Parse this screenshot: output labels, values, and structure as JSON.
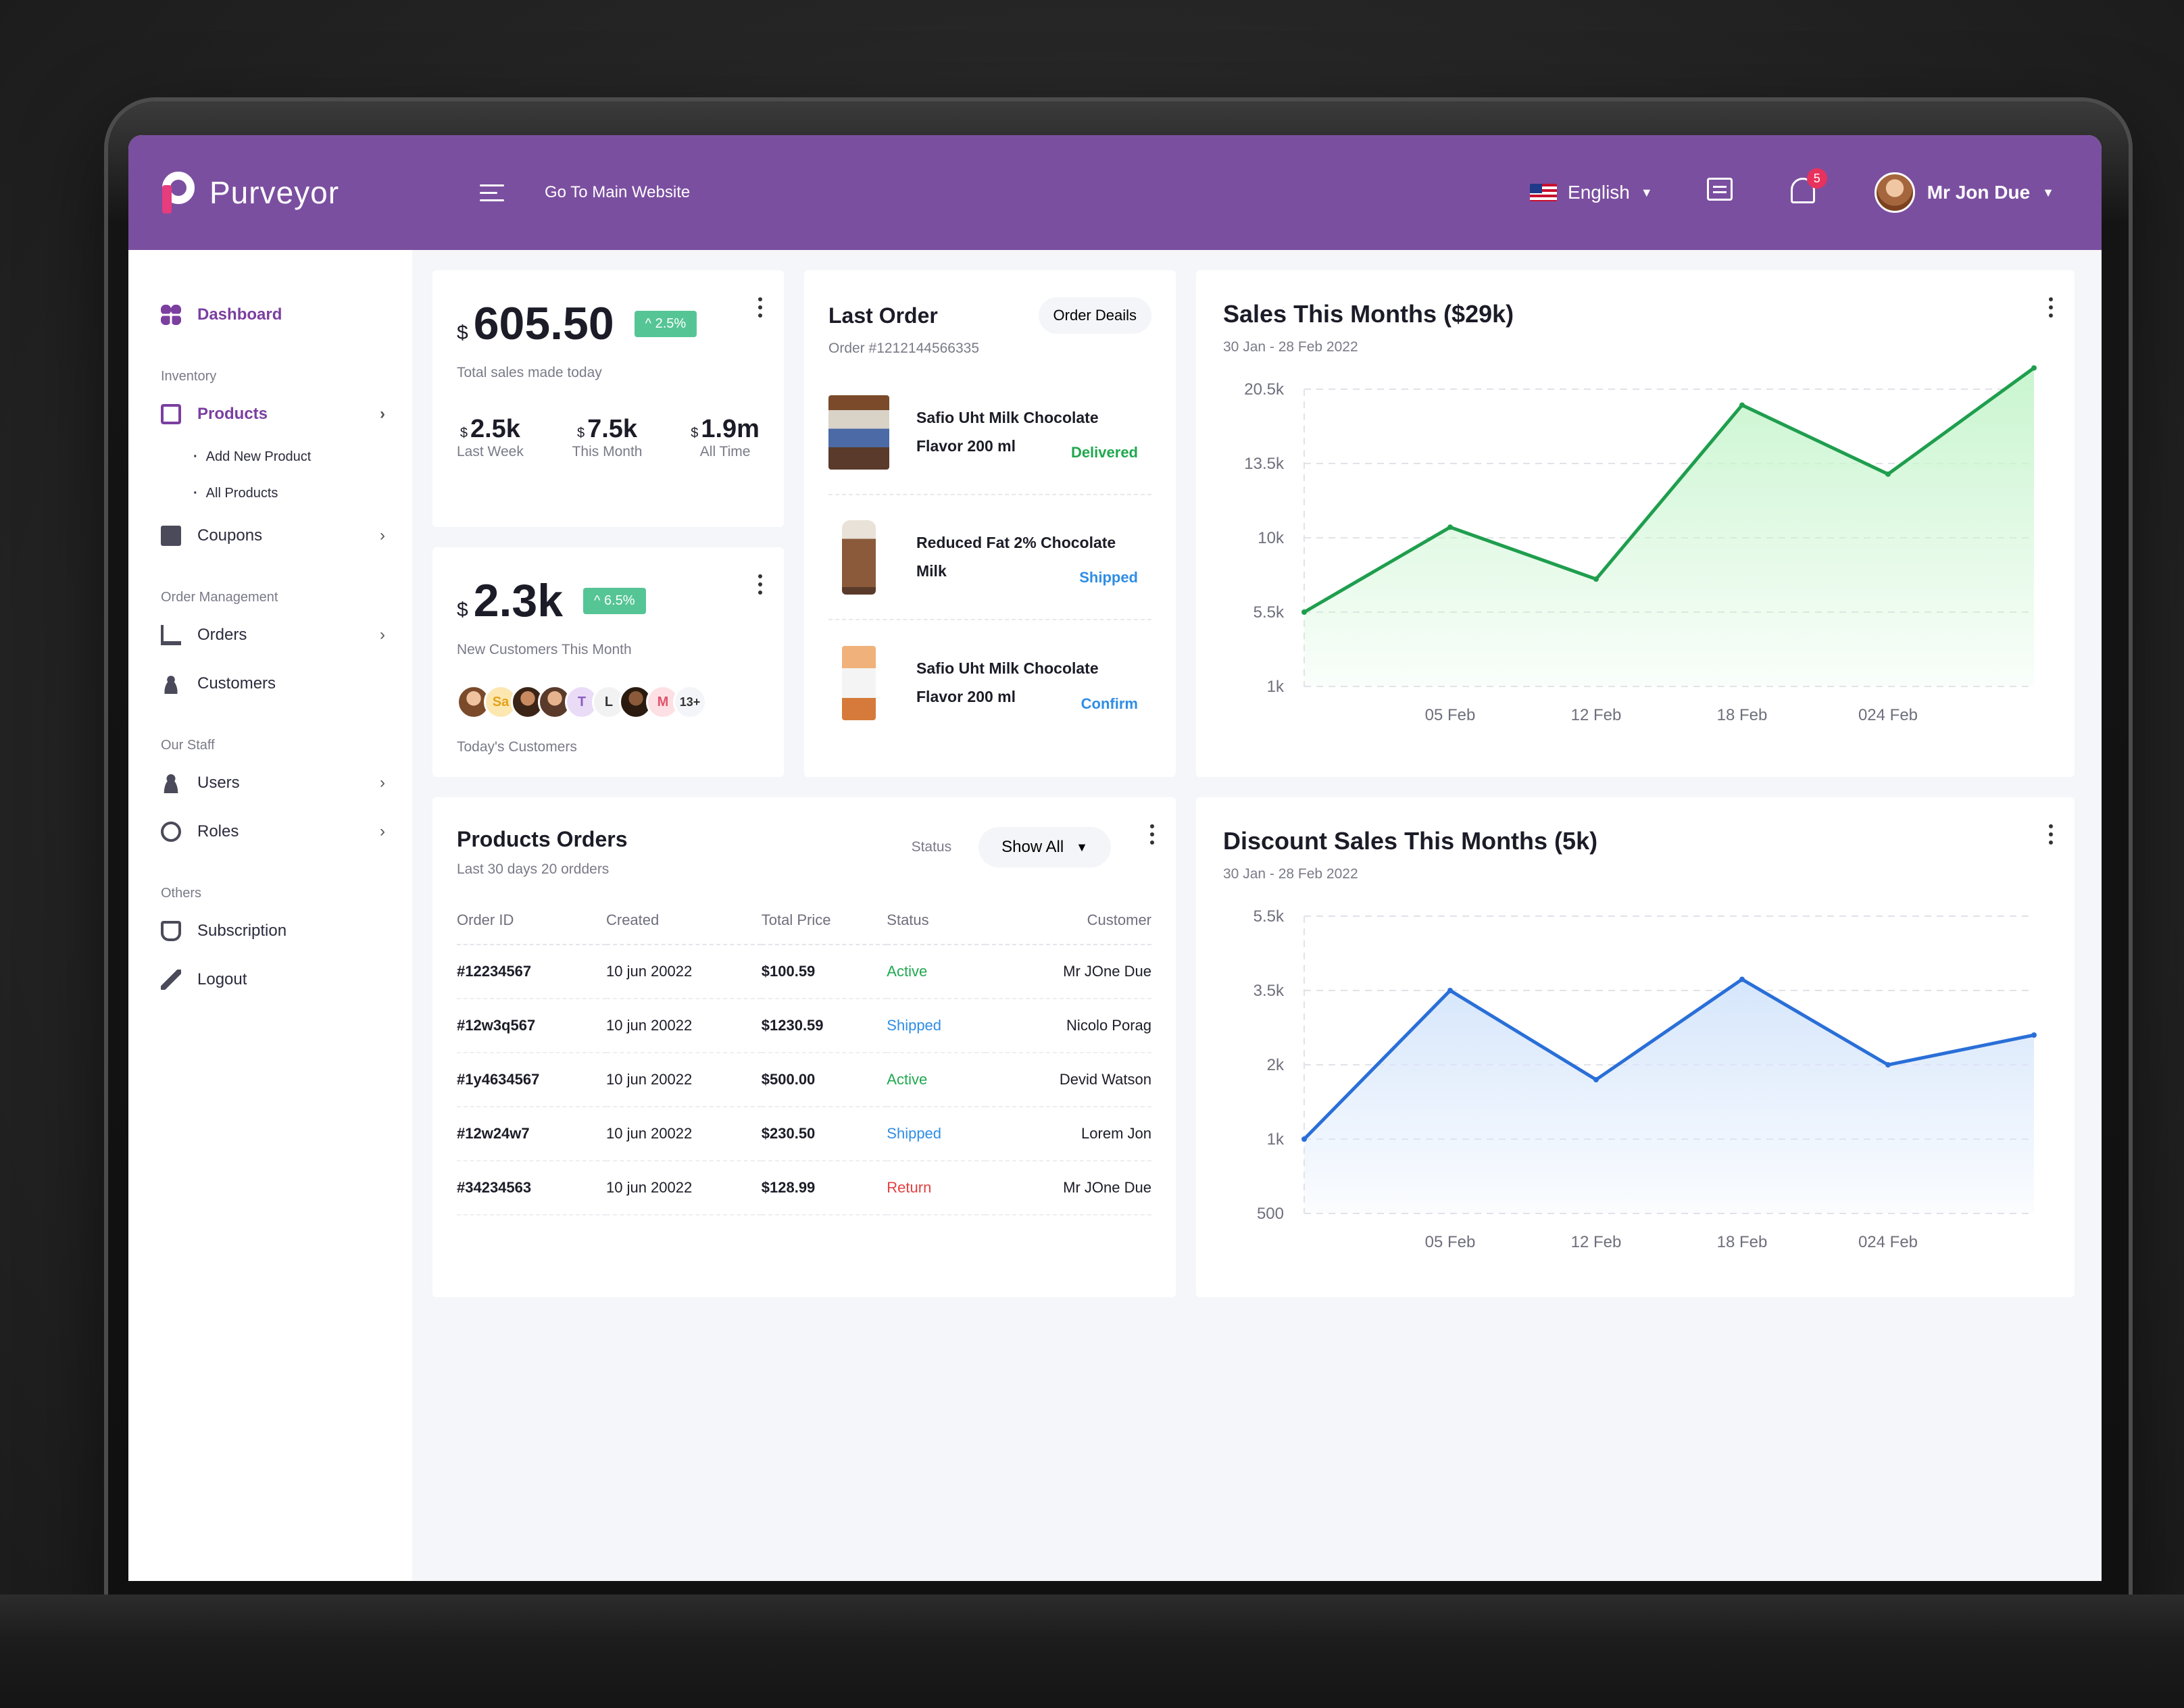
{
  "brand": {
    "name": "Purveyor"
  },
  "topbar": {
    "main_link": "Go To Main Website",
    "language": "English",
    "notification_count": "5",
    "user_name": "Mr Jon Due"
  },
  "sidebar": {
    "dashboard": "Dashboard",
    "sections": {
      "inventory": "Inventory",
      "order_management": "Order Management",
      "our_staff": "Our Staff",
      "others": "Others"
    },
    "products": "Products",
    "add_new_product": "Add New Product",
    "all_products": "All Products",
    "coupons": "Coupons",
    "orders": "Orders",
    "customers": "Customers",
    "users": "Users",
    "roles": "Roles",
    "subscription": "Subscription",
    "logout": "Logout"
  },
  "sales_card": {
    "currency": "$",
    "value": "605.50",
    "change": "^ 2.5%",
    "caption": "Total sales made today",
    "stats": [
      {
        "value": "2.5k",
        "label": "Last Week"
      },
      {
        "value": "7.5k",
        "label": "This Month"
      },
      {
        "value": "1.9m",
        "label": "All Time"
      }
    ]
  },
  "customers_card": {
    "currency": "$",
    "value": "2.3k",
    "change": "^ 6.5%",
    "caption": "New Customers This Month",
    "avatar_initials": [
      "Sa",
      "T",
      "L",
      "M"
    ],
    "more": "13+",
    "footer": "Today's Customers"
  },
  "last_order": {
    "title": "Last Order",
    "button": "Order Deails",
    "order_no": "Order #1212144566335",
    "items": [
      {
        "name": "Safio Uht Milk Chocolate Flavor 200 ml",
        "status": "Delivered"
      },
      {
        "name": "Reduced Fat 2% Chocolate Milk",
        "status": "Shipped"
      },
      {
        "name": "Safio Uht Milk Chocolate Flavor 200 ml",
        "status": "Confirm"
      }
    ]
  },
  "product_orders": {
    "title": "Products Orders",
    "subtitle": "Last 30 days 20 ordders",
    "status_label": "Status",
    "filter": "Show All",
    "columns": [
      "Order ID",
      "Created",
      "Total Price",
      "Status",
      "Customer"
    ],
    "rows": [
      [
        "#12234567",
        "10 jun 20022",
        "$100.59",
        "Active",
        "Mr JOne Due"
      ],
      [
        "#12w3q567",
        "10 jun 20022",
        "$1230.59",
        "Shipped",
        "Nicolo Porag"
      ],
      [
        "#1y4634567",
        "10 jun 20022",
        "$500.00",
        "Active",
        "Devid Watson"
      ],
      [
        "#12w24w7",
        "10 jun 20022",
        "$230.50",
        "Shipped",
        "Lorem Jon"
      ],
      [
        "#34234563",
        "10 jun 20022",
        "$128.99",
        "Return",
        "Mr JOne Due"
      ]
    ]
  },
  "chart_data": [
    {
      "type": "area",
      "title": "Sales This Months ($29k)",
      "subtitle": "30 Jan - 28 Feb 2022",
      "x_ticks": [
        "05 Feb",
        "12 Feb",
        "18 Feb",
        "024 Feb"
      ],
      "y_ticks": [
        "20.5k",
        "13.5k",
        "10k",
        "5.5k",
        "1k"
      ],
      "y_tick_values": [
        20500,
        13500,
        10000,
        5500,
        1000
      ],
      "points": [
        {
          "x": "30 Jan",
          "y": 5500
        },
        {
          "x": "05 Feb",
          "y": 10500
        },
        {
          "x": "12 Feb",
          "y": 7500
        },
        {
          "x": "18 Feb",
          "y": 19000
        },
        {
          "x": "024 Feb",
          "y": 13000
        },
        {
          "x": "28 Feb",
          "y": 22500
        }
      ],
      "color": "#1f9e4e",
      "fill": "#c9f5cf"
    },
    {
      "type": "area",
      "title": "Discount Sales This Months (5k)",
      "subtitle": "30 Jan - 28 Feb 2022",
      "x_ticks": [
        "05 Feb",
        "12 Feb",
        "18 Feb",
        "024 Feb"
      ],
      "y_ticks": [
        "5.5k",
        "3.5k",
        "2k",
        "1k",
        "500"
      ],
      "y_tick_values": [
        5500,
        3500,
        2000,
        1000,
        500
      ],
      "points": [
        {
          "x": "30 Jan",
          "y": 1000
        },
        {
          "x": "05 Feb",
          "y": 3500
        },
        {
          "x": "12 Feb",
          "y": 1800
        },
        {
          "x": "18 Feb",
          "y": 3800
        },
        {
          "x": "024 Feb",
          "y": 2000
        },
        {
          "x": "28 Feb",
          "y": 2600
        }
      ],
      "color": "#2a6fd8",
      "fill": "#d6e6fb"
    }
  ]
}
